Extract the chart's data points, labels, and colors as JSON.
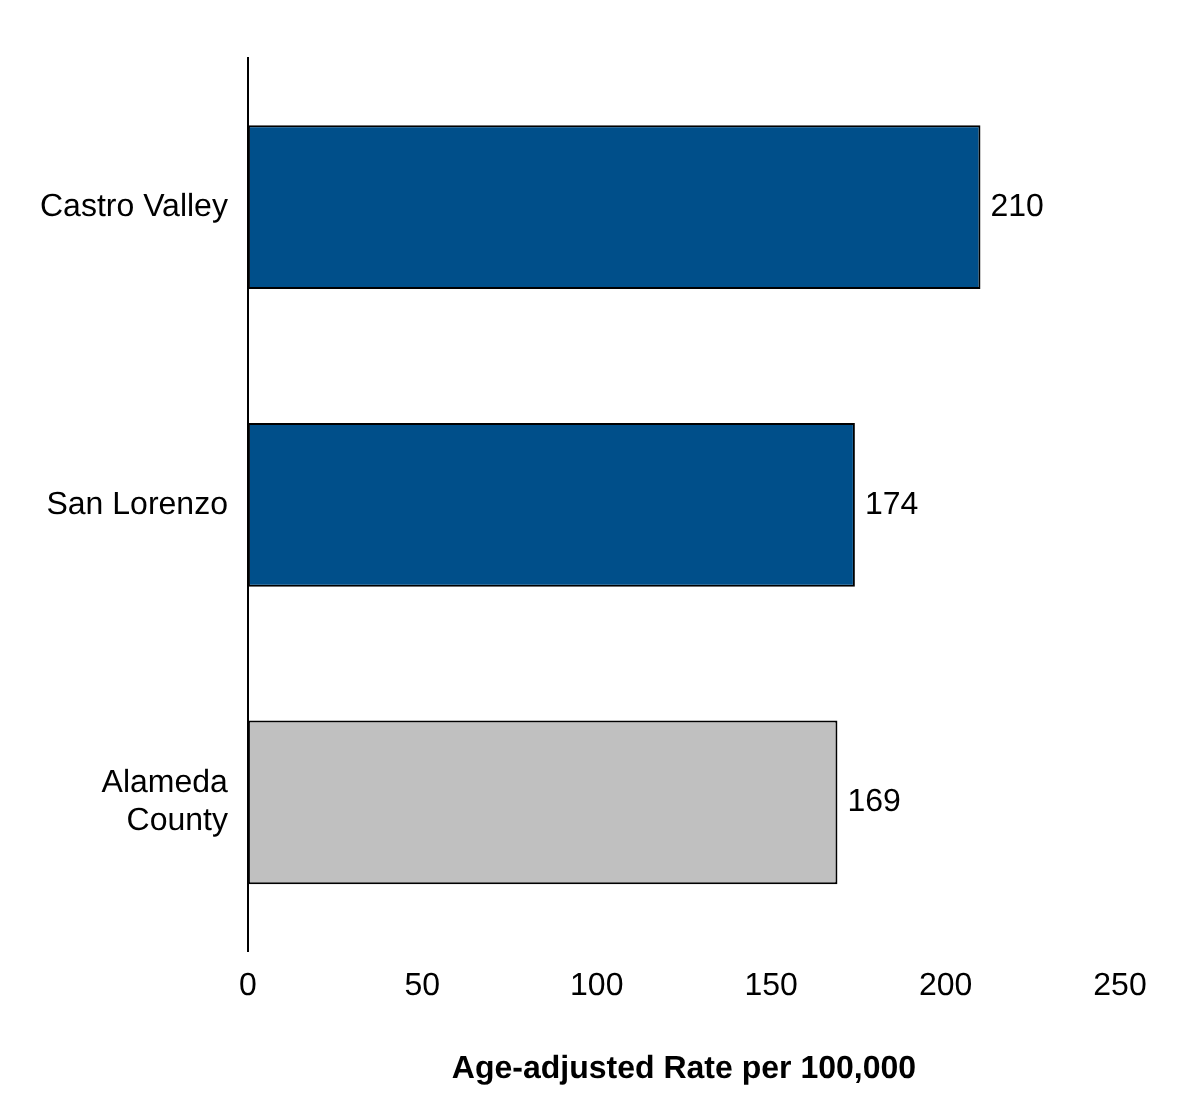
{
  "chart_data": {
    "type": "bar",
    "orientation": "horizontal",
    "categories": [
      "Castro Valley",
      "San Lorenzo",
      "Alameda County"
    ],
    "values": [
      210,
      174,
      169
    ],
    "colors": [
      "#004f8a",
      "#004f8a",
      "#c0c0c0"
    ],
    "xlim": [
      0,
      250
    ],
    "xticks": [
      0,
      50,
      100,
      150,
      200,
      250
    ],
    "xlabel": "Age-adjusted Rate per 100,000",
    "data_labels": true,
    "grid": false,
    "legend": false
  }
}
